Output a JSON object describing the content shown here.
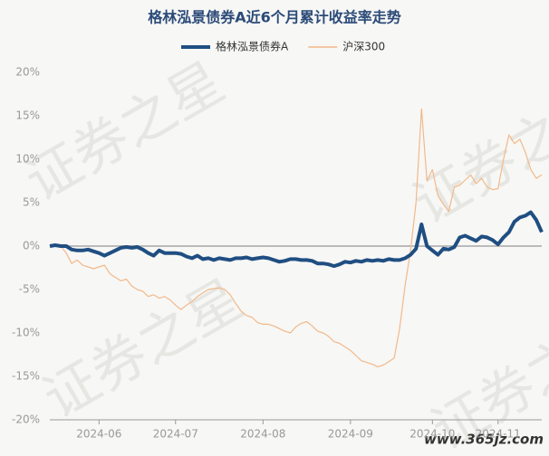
{
  "chart_data": {
    "type": "line",
    "title": "格林泓景债券A近6个月累计收益率走势",
    "watermark": "证券之星",
    "footer_mark": "www.365jz.com",
    "categories": [
      "",
      null,
      null,
      null,
      null,
      null,
      null,
      null,
      null,
      "2024-06",
      null,
      null,
      null,
      null,
      null,
      null,
      null,
      null,
      null,
      null,
      null,
      null,
      null,
      "2024-07",
      null,
      null,
      null,
      null,
      null,
      null,
      null,
      null,
      null,
      null,
      null,
      null,
      null,
      null,
      null,
      "2024-08",
      null,
      null,
      null,
      null,
      null,
      null,
      null,
      null,
      null,
      null,
      null,
      null,
      null,
      null,
      null,
      "2024-09",
      null,
      null,
      null,
      null,
      null,
      null,
      null,
      null,
      null,
      null,
      null,
      null,
      null,
      null,
      "2024-10",
      null,
      null,
      null,
      null,
      null,
      null,
      null,
      null,
      null,
      null,
      null,
      "2024-11",
      null,
      null,
      null,
      null,
      null,
      null,
      null,
      null
    ],
    "series": [
      {
        "name": "格林泓景债券A",
        "color": "#1f4e82",
        "values": [
          0,
          0.1,
          0,
          0,
          -0.4,
          -0.5,
          -0.5,
          -0.4,
          -0.6,
          -0.8,
          -1.1,
          -0.8,
          -0.5,
          -0.2,
          -0.1,
          -0.2,
          -0.1,
          -0.4,
          -0.8,
          -1.1,
          -0.5,
          -0.8,
          -0.8,
          -0.8,
          -0.9,
          -1.2,
          -1.4,
          -1.1,
          -1.5,
          -1.4,
          -1.6,
          -1.4,
          -1.5,
          -1.6,
          -1.4,
          -1.4,
          -1.3,
          -1.5,
          -1.4,
          -1.3,
          -1.4,
          -1.6,
          -1.8,
          -1.7,
          -1.5,
          -1.5,
          -1.6,
          -1.6,
          -1.7,
          -2.0,
          -2.0,
          -2.1,
          -2.3,
          -2.1,
          -1.8,
          -1.9,
          -1.7,
          -1.8,
          -1.6,
          -1.7,
          -1.6,
          -1.7,
          -1.5,
          -1.6,
          -1.6,
          -1.4,
          -1.0,
          -0.3,
          2.5,
          0.0,
          -0.5,
          -1.0,
          -0.3,
          -0.4,
          -0.1,
          1.0,
          1.2,
          0.9,
          0.6,
          1.1,
          1.0,
          0.7,
          0.2,
          1.0,
          1.6,
          2.8,
          3.3,
          3.5,
          3.9,
          3.0,
          1.6
        ]
      },
      {
        "name": "沪深300",
        "color": "#f2b98a",
        "values": [
          0,
          0.1,
          0,
          -0.8,
          -2.0,
          -1.6,
          -2.2,
          -2.4,
          -2.6,
          -2.4,
          -2.2,
          -3.2,
          -3.6,
          -4.0,
          -3.8,
          -4.6,
          -5.0,
          -5.2,
          -5.8,
          -5.6,
          -6.0,
          -5.8,
          -6.2,
          -6.8,
          -7.3,
          -6.8,
          -6.4,
          -5.8,
          -5.4,
          -5.0,
          -4.9,
          -4.8,
          -5.0,
          -5.6,
          -6.6,
          -7.5,
          -8.0,
          -8.2,
          -8.8,
          -9.0,
          -9.0,
          -9.2,
          -9.5,
          -9.8,
          -10.0,
          -9.3,
          -8.9,
          -8.7,
          -9.2,
          -9.8,
          -10.0,
          -10.4,
          -11.0,
          -11.2,
          -11.6,
          -12.0,
          -12.6,
          -13.2,
          -13.4,
          -13.6,
          -13.9,
          -13.7,
          -13.3,
          -12.9,
          -9.5,
          -4.5,
          -0.5,
          5.0,
          15.8,
          7.5,
          8.8,
          5.8,
          4.8,
          4.0,
          6.8,
          7.0,
          7.6,
          8.2,
          7.2,
          7.8,
          6.8,
          6.5,
          6.6,
          10.0,
          12.8,
          11.8,
          12.3,
          10.8,
          8.8,
          7.8,
          8.2
        ]
      }
    ],
    "ylim": [
      -20,
      20
    ],
    "yticks": [
      {
        "value": -20,
        "label": "-20%"
      },
      {
        "value": -15,
        "label": "-15%"
      },
      {
        "value": -10,
        "label": "-10%"
      },
      {
        "value": -5,
        "label": "-5%"
      },
      {
        "value": 0,
        "label": "0%"
      },
      {
        "value": 5,
        "label": "5%"
      },
      {
        "value": 10,
        "label": "10%"
      },
      {
        "value": 15,
        "label": "15%"
      },
      {
        "value": 20,
        "label": "20%"
      }
    ],
    "grid": false,
    "legend": "top"
  }
}
